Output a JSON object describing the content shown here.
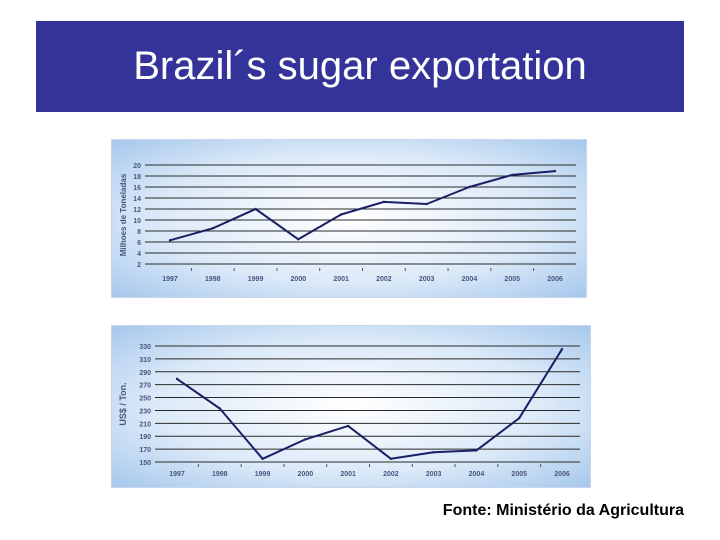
{
  "slide": {
    "title": "Brazil´s sugar exportation",
    "source": "Fonte: Ministério da Agricultura"
  },
  "colors": {
    "title_bg": "#333399",
    "title_text": "#ffffff",
    "line": "#1a1f66",
    "grid": "#2a2a2a",
    "panel_bg_center": "#ffffff",
    "panel_bg_edge": "#9ec3ea",
    "axis_text": "#4a5580"
  },
  "chart_data": [
    {
      "type": "line",
      "categories": [
        "1997",
        "1998",
        "1999",
        "2000",
        "2001",
        "2002",
        "2003",
        "2004",
        "2005",
        "2006"
      ],
      "series": [
        {
          "values": [
            6.3,
            8.5,
            12.0,
            6.5,
            11.0,
            13.3,
            12.9,
            16.0,
            18.2,
            18.9
          ]
        }
      ],
      "ylabel": "Milhoes de Toneladas",
      "ylim": [
        2,
        20
      ],
      "yticks": [
        "20",
        "18",
        "16",
        "14",
        "12",
        "10",
        "8",
        "6",
        "4",
        "2"
      ],
      "grid": true
    },
    {
      "type": "line",
      "categories": [
        "1997",
        "1998",
        "1999",
        "2000",
        "2001",
        "2002",
        "2003",
        "2004",
        "2005",
        "2006"
      ],
      "series": [
        {
          "values": [
            279,
            233,
            155,
            185,
            206,
            155,
            165,
            168,
            218,
            325
          ]
        }
      ],
      "ylabel": "US$ / Ton.",
      "ylim": [
        150,
        330
      ],
      "yticks": [
        "330",
        "310",
        "290",
        "270",
        "250",
        "230",
        "210",
        "190",
        "170",
        "150"
      ],
      "grid": true
    }
  ]
}
